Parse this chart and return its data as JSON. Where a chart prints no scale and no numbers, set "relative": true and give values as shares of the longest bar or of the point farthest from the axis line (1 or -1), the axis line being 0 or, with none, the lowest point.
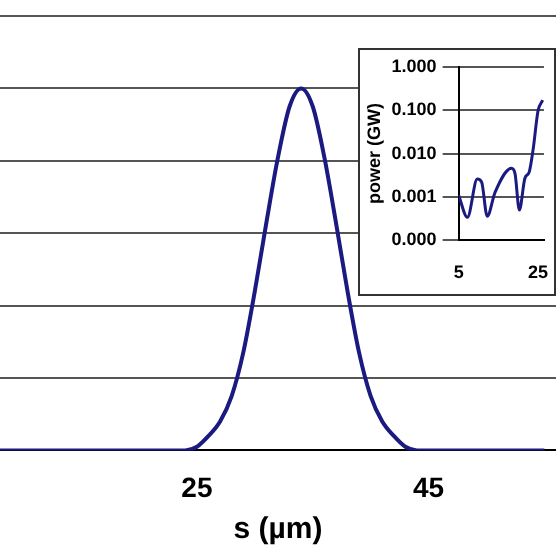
{
  "chart_data": [
    {
      "type": "line",
      "xlabel": "s (µm)",
      "relative": true,
      "grid": "y",
      "legend": false,
      "marker": "none",
      "line_style": "solid",
      "tick_labels": "x",
      "xlim": [
        8,
        56
      ],
      "xticks": [
        25,
        45
      ],
      "x": [
        8,
        15,
        22,
        24,
        25,
        26,
        27,
        28,
        29,
        30,
        31,
        32,
        33,
        34,
        35,
        36,
        37,
        38,
        39,
        40,
        41,
        42,
        43,
        44,
        46,
        50,
        55
      ],
      "series": [
        {
          "color": "#1a1a80",
          "values": [
            0,
            0,
            0,
            0,
            0.01,
            0.04,
            0.08,
            0.15,
            0.27,
            0.44,
            0.63,
            0.81,
            0.95,
            1,
            0.95,
            0.81,
            0.63,
            0.44,
            0.27,
            0.15,
            0.08,
            0.04,
            0.01,
            0,
            0,
            0,
            0
          ]
        }
      ]
    },
    {
      "type": "line",
      "ylabel": "power (GW)",
      "log": "y",
      "grid": "y",
      "legend": false,
      "marker": "none",
      "line_style": "solid",
      "xlim": [
        5,
        26.5
      ],
      "xticks": [
        5,
        25
      ],
      "ylim": [
        0.0001,
        1
      ],
      "yticks": [
        {
          "value": 0.0001,
          "label": "0.000"
        },
        {
          "value": 0.001,
          "label": "0.001"
        },
        {
          "value": 0.01,
          "label": "0.010"
        },
        {
          "value": 0.1,
          "label": "0.100"
        },
        {
          "value": 1,
          "label": "1.000"
        }
      ],
      "x": [
        5,
        7.2,
        9.7,
        10.8,
        12.2,
        14.2,
        18.3,
        19.2,
        20.3,
        21.7,
        22.8,
        23.8,
        25,
        26.2
      ],
      "series": [
        {
          "color": "#1a1a80",
          "values": [
            0.0011,
            0.00034,
            0.0026,
            0.0022,
            0.00036,
            0.0013,
            0.0046,
            0.0035,
            0.0005,
            0.0027,
            0.0038,
            0.013,
            0.096,
            0.17
          ]
        }
      ]
    }
  ]
}
